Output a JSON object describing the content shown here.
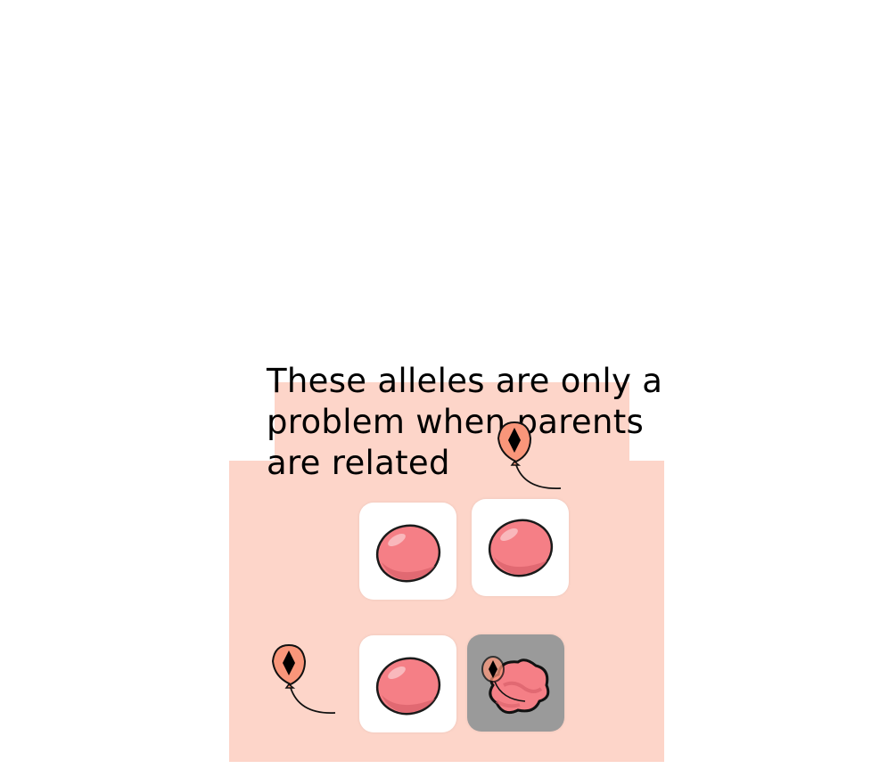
{
  "caption": "These alleles are only a problem when parents are related",
  "colors": {
    "background_panel": "#fdd5c9",
    "tile": "#ffffff",
    "tile_popped": "#9a9a9a",
    "balloon_pink": "#f57f86",
    "balloon_orange": "#f9967a"
  },
  "grid": {
    "tiles": [
      {
        "state": "balloon",
        "icon": "pink-balloon-icon"
      },
      {
        "state": "balloon",
        "icon": "pink-balloon-icon"
      },
      {
        "state": "balloon",
        "icon": "pink-balloon-icon"
      },
      {
        "state": "popped",
        "icon": "popped-balloon-icon"
      }
    ]
  },
  "floating_balloons": [
    {
      "icon": "floating-balloon-icon"
    },
    {
      "icon": "floating-balloon-icon"
    }
  ]
}
